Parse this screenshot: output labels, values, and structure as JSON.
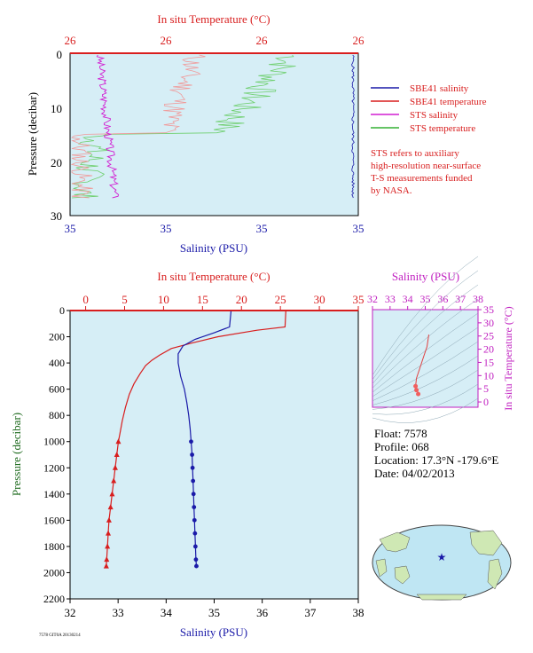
{
  "top_panel": {
    "temp_axis_label": "In situ Temperature (°C)",
    "temp_ticks": [
      "26",
      "26",
      "26",
      "26"
    ],
    "sal_axis_label": "Salinity (PSU)",
    "sal_ticks": [
      "35",
      "35",
      "35",
      "35"
    ],
    "pressure_label": "Pressure (decibar)",
    "pressure_ticks": [
      "0",
      "10",
      "20",
      "30"
    ]
  },
  "legend": {
    "items": [
      {
        "label": "SBE41 salinity",
        "color": "#1a1aa8"
      },
      {
        "label": "SBE41 temperature",
        "color": "#d81e1e"
      },
      {
        "label": "STS salinity",
        "color": "#d21fd2"
      },
      {
        "label": "STS temperature",
        "color": "#33b033"
      }
    ],
    "note": [
      "STS refers to auxiliary",
      "high-resolution near-surface",
      "T-S measurements funded",
      "by NASA."
    ]
  },
  "main_panel": {
    "temp_axis_label": "In situ Temperature (°C)",
    "temp_ticks": [
      "0",
      "5",
      "10",
      "15",
      "20",
      "25",
      "30",
      "35"
    ],
    "sal_axis_label": "Salinity (PSU)",
    "sal_ticks": [
      "32",
      "33",
      "34",
      "35",
      "36",
      "37",
      "38"
    ],
    "pressure_label": "Pressure (decibar)",
    "pressure_ticks": [
      "0",
      "200",
      "400",
      "600",
      "800",
      "1000",
      "1200",
      "1400",
      "1600",
      "1800",
      "2000",
      "2200"
    ]
  },
  "ts_panel": {
    "sal_axis_label": "Salinity (PSU)",
    "sal_ticks": [
      "32",
      "33",
      "34",
      "35",
      "36",
      "37",
      "38"
    ],
    "temp_axis_label": "In situ Temperature (°C)",
    "temp_ticks": [
      "0",
      "5",
      "10",
      "15",
      "20",
      "25",
      "30",
      "35"
    ]
  },
  "float_info": {
    "float": "Float:  7578",
    "profile": "Profile:  068",
    "location": "Location:  17.3°N  -179.6°E",
    "date": "Date:  04/02/2013"
  },
  "footer_code": "7578 GIT0A 20130214",
  "colors": {
    "panel_bg": "#d6eef6",
    "temp": "#d81e1e",
    "sal": "#1a1aa8",
    "sts_sal": "#d21fd2",
    "sts_temp": "#33b033",
    "ts": "#c01fc0"
  },
  "chart_data": [
    {
      "type": "line",
      "name": "main-profile",
      "series": [
        {
          "name": "SBE41 temperature",
          "x_units": "°C",
          "y_units": "decibar",
          "points": [
            [
              25.7,
              5
            ],
            [
              25.6,
              125
            ],
            [
              22,
              150
            ],
            [
              17,
              200
            ],
            [
              13.5,
              250
            ],
            [
              11,
              290
            ],
            [
              9.5,
              340
            ],
            [
              8.5,
              380
            ],
            [
              7.7,
              420
            ],
            [
              7,
              480
            ],
            [
              6.2,
              560
            ],
            [
              5.6,
              640
            ],
            [
              5.1,
              740
            ],
            [
              4.7,
              840
            ],
            [
              4.4,
              940
            ],
            [
              4.2,
              1000
            ],
            [
              4.0,
              1100
            ],
            [
              3.8,
              1200
            ],
            [
              3.6,
              1300
            ],
            [
              3.4,
              1400
            ],
            [
              3.2,
              1500
            ],
            [
              3.0,
              1600
            ],
            [
              2.9,
              1700
            ],
            [
              2.8,
              1800
            ],
            [
              2.7,
              1900
            ],
            [
              2.65,
              1950
            ]
          ],
          "marker_from": 1000
        },
        {
          "name": "SBE41 salinity",
          "x_units": "PSU",
          "y_units": "decibar",
          "points": [
            [
              35.35,
              5
            ],
            [
              35.32,
              125
            ],
            [
              35.0,
              170
            ],
            [
              34.6,
              220
            ],
            [
              34.35,
              270
            ],
            [
              34.25,
              330
            ],
            [
              34.25,
              400
            ],
            [
              34.3,
              500
            ],
            [
              34.38,
              600
            ],
            [
              34.43,
              700
            ],
            [
              34.47,
              800
            ],
            [
              34.5,
              900
            ],
            [
              34.52,
              1000
            ],
            [
              34.54,
              1100
            ],
            [
              34.55,
              1200
            ],
            [
              34.56,
              1300
            ],
            [
              34.57,
              1400
            ],
            [
              34.58,
              1500
            ],
            [
              34.59,
              1600
            ],
            [
              34.6,
              1700
            ],
            [
              34.61,
              1800
            ],
            [
              34.62,
              1900
            ],
            [
              34.63,
              1950
            ]
          ],
          "marker_from": 1000
        }
      ],
      "xlim_temp": [
        -2,
        35
      ],
      "xlim_sal": [
        32,
        38
      ],
      "ylim": [
        0,
        2200
      ]
    },
    {
      "type": "scatter",
      "name": "ts-diagram",
      "series": [
        {
          "name": "T-S",
          "points": [
            [
              35.2,
              25.5
            ],
            [
              35.1,
              21
            ],
            [
              34.9,
              17
            ],
            [
              34.7,
              13
            ],
            [
              34.5,
              9
            ],
            [
              34.45,
              6
            ],
            [
              34.5,
              4.5
            ],
            [
              34.6,
              3
            ]
          ]
        }
      ],
      "xlim": [
        32,
        38
      ],
      "ylim": [
        -2,
        35
      ]
    }
  ]
}
